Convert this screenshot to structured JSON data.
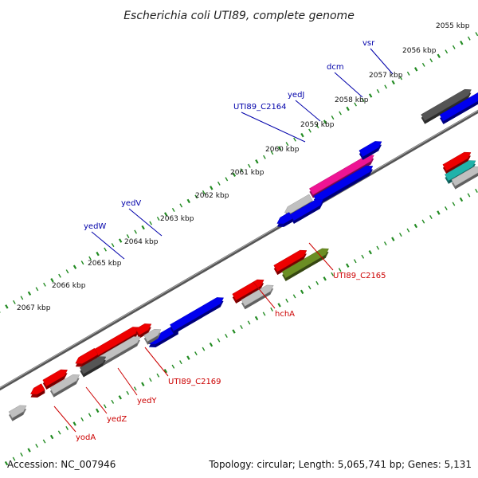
{
  "title": "Escherichia coli UTI89, complete genome",
  "footer": {
    "accession": "Accession: NC_007946",
    "summary": "Topology: circular; Length: 5,065,741 bp; Genes: 5,131"
  },
  "colors": {
    "blue": "#0000ee",
    "red": "#ee0000",
    "magenta": "#ee1493",
    "olive": "#6b8e23",
    "silver": "#c0c0c0",
    "dark": "#555555",
    "teal": "#20b2aa",
    "label_blue": "#0000aa",
    "label_red": "#cc0000",
    "tick": "#228b22",
    "backbone": "#777777"
  },
  "ticks": [
    "2055 kbp",
    "2056 kbp",
    "2057 kbp",
    "2058 kbp",
    "2059 kbp",
    "2060 kbp",
    "2061 kbp",
    "2062 kbp",
    "2063 kbp",
    "2064 kbp",
    "2065 kbp",
    "2066 kbp",
    "2067 kbp"
  ],
  "genes": [
    {
      "name": "vsr",
      "color": "label_blue"
    },
    {
      "name": "dcm",
      "color": "label_blue"
    },
    {
      "name": "yedJ",
      "color": "label_blue"
    },
    {
      "name": "UTI89_C2164",
      "color": "label_blue"
    },
    {
      "name": "yedV",
      "color": "label_blue"
    },
    {
      "name": "yedW",
      "color": "label_blue"
    },
    {
      "name": "UTI89_C2165",
      "color": "label_red"
    },
    {
      "name": "hchA",
      "color": "label_red"
    },
    {
      "name": "UTI89_C2169",
      "color": "label_red"
    },
    {
      "name": "yedY",
      "color": "label_red"
    },
    {
      "name": "yedZ",
      "color": "label_red"
    },
    {
      "name": "yodA",
      "color": "label_red"
    }
  ]
}
